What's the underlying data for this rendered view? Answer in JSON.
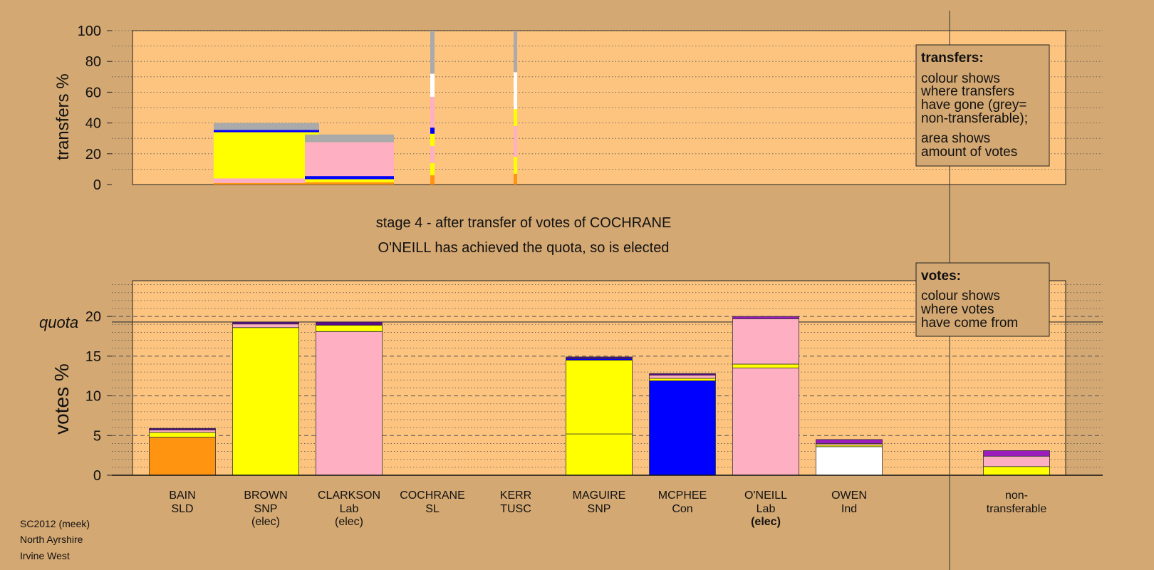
{
  "colors": {
    "background": "#d4a872",
    "plot_area": "#fdc480",
    "legend_box": "#d4a872",
    "SLD": "#ff9411",
    "SNP": "#ffff00",
    "Lab": "#ffafc2",
    "Con": "#0000ff",
    "SL": "#9b1bbd",
    "TUSC": "#cc0000",
    "Ind": "#ffffff",
    "nontransferable": "#aaaaaa",
    "SL_dark": "#5a0a8a"
  },
  "title": {
    "line1": "stage 4 - after transfer of votes of COCHRANE",
    "line2": "O'NEILL has achieved the quota, so is elected"
  },
  "footer": {
    "line1": "SC2012 (meek)",
    "line2": "North Ayrshire",
    "line3": "Irvine West"
  },
  "legend_transfers": {
    "title": "transfers:",
    "lines": [
      "colour shows",
      "where transfers",
      "have gone (grey=",
      "non-transferable);",
      "area shows",
      "amount of votes"
    ]
  },
  "legend_votes": {
    "title": "votes:",
    "lines": [
      "colour shows",
      "where votes",
      "have come from"
    ]
  },
  "quota_label": "quota",
  "chart_data": [
    {
      "type": "bar",
      "stacked": true,
      "ylabel": "transfers %",
      "ylim": [
        0,
        100
      ],
      "yticks": [
        "0",
        "20",
        "40",
        "60",
        "80",
        "100"
      ],
      "grid": true,
      "columns": [
        {
          "candidate": "BAIN",
          "width": 0.4,
          "segments": [
            {
              "color": "SLD",
              "value": 1
            },
            {
              "color": "Lab",
              "value": 3
            },
            {
              "color": "SNP",
              "value": 30
            },
            {
              "color": "Con",
              "value": 1.5
            },
            {
              "color": "nontransferable",
              "value": 4.5
            }
          ]
        },
        {
          "candidate": "BROWN",
          "width": 0.4,
          "segments": [
            {
              "color": "SLD",
              "value": 1.5
            },
            {
              "color": "SNP",
              "value": 2
            },
            {
              "color": "Con",
              "value": 2
            },
            {
              "color": "Lab",
              "value": 22
            },
            {
              "color": "nontransferable",
              "value": 5
            }
          ]
        },
        {
          "candidate": "COCHRANE",
          "width": 0.05,
          "segments": [
            {
              "color": "SLD",
              "value": 6
            },
            {
              "color": "SNP",
              "value": 8
            },
            {
              "color": "Lab",
              "value": 11
            },
            {
              "color": "SNP",
              "value": 8
            },
            {
              "color": "Con",
              "value": 4
            },
            {
              "color": "Lab",
              "value": 20
            },
            {
              "color": "Ind",
              "value": 15
            },
            {
              "color": "nontransferable",
              "value": 28
            }
          ]
        },
        {
          "candidate": "KERR",
          "width": 0.05,
          "segments": [
            {
              "color": "SLD",
              "value": 7
            },
            {
              "color": "SNP",
              "value": 11
            },
            {
              "color": "Lab",
              "value": 20
            },
            {
              "color": "SNP",
              "value": 11
            },
            {
              "color": "Ind",
              "value": 24
            },
            {
              "color": "nontransferable",
              "value": 27
            }
          ]
        }
      ]
    },
    {
      "type": "bar",
      "stacked": true,
      "ylabel": "votes %",
      "ylim": [
        0,
        24.5
      ],
      "yticks": [
        "0",
        "5",
        "10",
        "15",
        "20"
      ],
      "quota": 19.3,
      "grid": true,
      "categories": [
        {
          "name": "BAIN",
          "party": "SLD",
          "note": ""
        },
        {
          "name": "BROWN",
          "party": "SNP",
          "note": "(elec)"
        },
        {
          "name": "CLARKSON",
          "party": "Lab",
          "note": "(elec)"
        },
        {
          "name": "COCHRANE",
          "party": "SL",
          "note": ""
        },
        {
          "name": "KERR",
          "party": "TUSC",
          "note": ""
        },
        {
          "name": "MAGUIRE",
          "party": "SNP",
          "note": ""
        },
        {
          "name": "MCPHEE",
          "party": "Con",
          "note": ""
        },
        {
          "name": "O'NEILL",
          "party": "Lab",
          "note": "(elec)"
        },
        {
          "name": "OWEN",
          "party": "Ind",
          "note": ""
        },
        {
          "name": "non-",
          "party": "transferable",
          "note": ""
        }
      ],
      "bars": [
        {
          "candidate": "BAIN",
          "segments": [
            {
              "color": "SLD",
              "value": 4.8
            },
            {
              "color": "SNP",
              "value": 0.6
            },
            {
              "color": "Lab",
              "value": 0.3
            },
            {
              "color": "SL_dark",
              "value": 0.2
            }
          ]
        },
        {
          "candidate": "BROWN",
          "segments": [
            {
              "color": "SNP",
              "value": 18.6
            },
            {
              "color": "Lab",
              "value": 0.45
            },
            {
              "color": "SL_dark",
              "value": 0.25
            }
          ]
        },
        {
          "candidate": "CLARKSON",
          "segments": [
            {
              "color": "Lab",
              "value": 18.1
            },
            {
              "color": "SNP",
              "value": 0.8
            },
            {
              "color": "SL_dark",
              "value": 0.4
            }
          ]
        },
        {
          "candidate": "COCHRANE",
          "segments": []
        },
        {
          "candidate": "KERR",
          "segments": []
        },
        {
          "candidate": "MAGUIRE",
          "segments": [
            {
              "color": "SNP",
              "value": 5.2
            },
            {
              "color": "SNP",
              "value": 9.3
            },
            {
              "color": "Con",
              "value": 0.2
            },
            {
              "color": "SL_dark",
              "value": 0.2
            }
          ]
        },
        {
          "candidate": "MCPHEE",
          "segments": [
            {
              "color": "Con",
              "value": 11.9
            },
            {
              "color": "SNP",
              "value": 0.3
            },
            {
              "color": "Lab",
              "value": 0.4
            },
            {
              "color": "SL_dark",
              "value": 0.2
            }
          ]
        },
        {
          "candidate": "O'NEILL",
          "segments": [
            {
              "color": "Lab",
              "value": 13.5
            },
            {
              "color": "SNP",
              "value": 0.5
            },
            {
              "color": "Lab",
              "value": 5.7
            },
            {
              "color": "SL",
              "value": 0.3
            }
          ]
        },
        {
          "candidate": "OWEN",
          "segments": [
            {
              "color": "Ind",
              "value": 3.6
            },
            {
              "color": "SNP",
              "value": 0.2
            },
            {
              "color": "Lab",
              "value": 0.2
            },
            {
              "color": "SL",
              "value": 0.5
            }
          ]
        },
        {
          "candidate": "non-transferable",
          "segments": [
            {
              "color": "SNP",
              "value": 1.1
            },
            {
              "color": "Lab",
              "value": 1.3
            },
            {
              "color": "SL",
              "value": 0.7
            }
          ]
        }
      ]
    }
  ]
}
